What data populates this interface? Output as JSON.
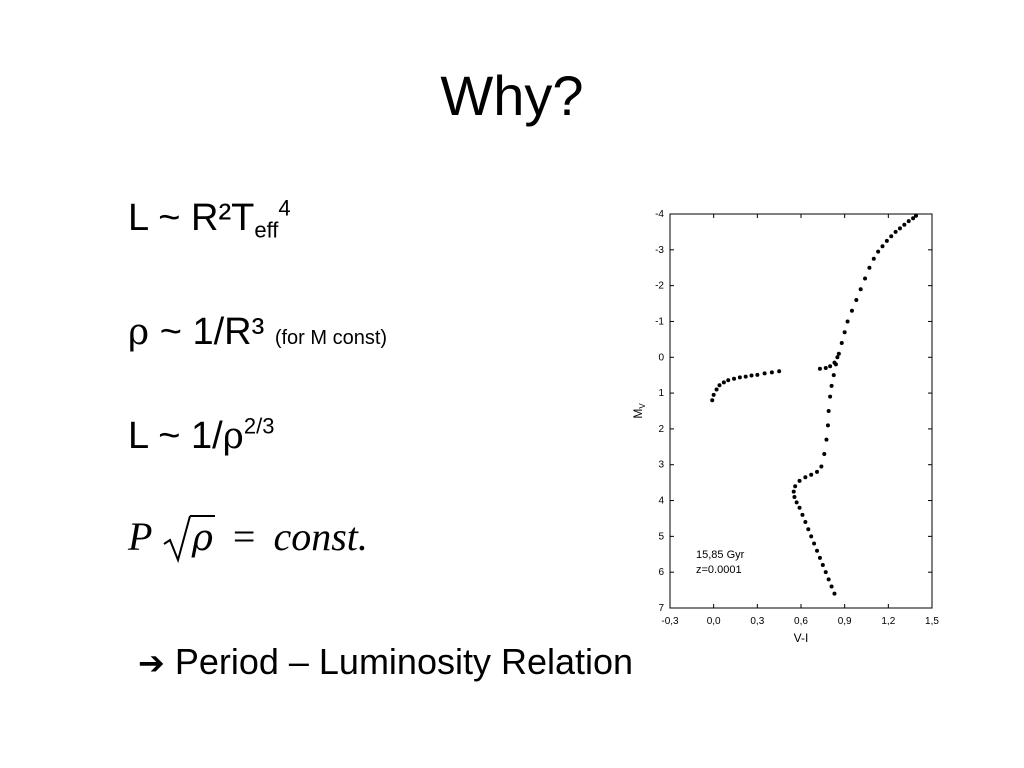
{
  "slide": {
    "title": "Why?",
    "eq1": {
      "lhs": "L ~ R²T",
      "sub": "eff",
      "sup": "4"
    },
    "eq2": {
      "rho": "ρ",
      "rhs": " ~ 1/R³ ",
      "note": "(for M const)"
    },
    "eq3": {
      "lhs": "L ~ 1/",
      "rho": "ρ",
      "sup": "2/3"
    },
    "formula": {
      "p": "P",
      "rho": "ρ",
      "eq": "=",
      "rhs": "const."
    },
    "bullet": {
      "arrow": "➔",
      "text": "Period – Luminosity Relation"
    }
  },
  "chart_data": {
    "type": "scatter",
    "title": "",
    "xlabel": "V-I",
    "ylabel": "M_V",
    "xlim": [
      -0.3,
      1.5
    ],
    "ylim": [
      7,
      -4
    ],
    "xticks": [
      "-0,3",
      "0,0",
      "0,3",
      "0,6",
      "0,9",
      "1,2",
      "1,5"
    ],
    "yticks": [
      "-4",
      "-3",
      "-2",
      "-1",
      "0",
      "1",
      "2",
      "3",
      "4",
      "5",
      "6",
      "7"
    ],
    "annotation": [
      "15,85 Gyr",
      "z=0.0001"
    ],
    "series": [
      {
        "points": [
          [
            0.83,
            6.6
          ],
          [
            0.81,
            6.4
          ],
          [
            0.79,
            6.2
          ],
          [
            0.77,
            6.0
          ],
          [
            0.75,
            5.8
          ],
          [
            0.73,
            5.6
          ],
          [
            0.71,
            5.4
          ],
          [
            0.69,
            5.2
          ],
          [
            0.67,
            5.0
          ],
          [
            0.65,
            4.8
          ],
          [
            0.63,
            4.6
          ],
          [
            0.61,
            4.4
          ],
          [
            0.59,
            4.2
          ],
          [
            0.57,
            4.05
          ],
          [
            0.555,
            3.9
          ],
          [
            0.55,
            3.75
          ],
          [
            0.56,
            3.6
          ],
          [
            0.59,
            3.45
          ],
          [
            0.63,
            3.35
          ],
          [
            0.67,
            3.28
          ],
          [
            0.71,
            3.2
          ],
          [
            0.74,
            3.05
          ],
          [
            0.76,
            2.7
          ],
          [
            0.775,
            2.3
          ],
          [
            0.785,
            1.9
          ],
          [
            0.79,
            1.5
          ],
          [
            0.8,
            1.1
          ],
          [
            0.81,
            0.8
          ],
          [
            0.825,
            0.5
          ],
          [
            0.84,
            0.2
          ],
          [
            0.86,
            -0.1
          ],
          [
            0.88,
            -0.4
          ],
          [
            0.9,
            -0.7
          ],
          [
            0.92,
            -1.0
          ],
          [
            0.95,
            -1.3
          ],
          [
            0.98,
            -1.6
          ],
          [
            1.01,
            -1.9
          ],
          [
            1.04,
            -2.2
          ],
          [
            1.07,
            -2.5
          ],
          [
            1.1,
            -2.75
          ],
          [
            1.13,
            -2.95
          ],
          [
            1.16,
            -3.1
          ],
          [
            1.19,
            -3.25
          ],
          [
            1.22,
            -3.38
          ],
          [
            1.25,
            -3.5
          ],
          [
            1.28,
            -3.6
          ],
          [
            1.31,
            -3.7
          ],
          [
            1.34,
            -3.8
          ],
          [
            1.37,
            -3.88
          ],
          [
            1.39,
            -3.95
          ],
          [
            0.85,
            0.0
          ],
          [
            0.83,
            0.15
          ],
          [
            0.8,
            0.25
          ],
          [
            0.77,
            0.3
          ],
          [
            0.73,
            0.32
          ],
          [
            -0.01,
            1.2
          ],
          [
            0.0,
            1.05
          ],
          [
            0.02,
            0.9
          ],
          [
            0.04,
            0.78
          ],
          [
            0.07,
            0.7
          ],
          [
            0.1,
            0.64
          ],
          [
            0.14,
            0.6
          ],
          [
            0.18,
            0.56
          ],
          [
            0.22,
            0.54
          ],
          [
            0.26,
            0.51
          ],
          [
            0.3,
            0.49
          ],
          [
            0.35,
            0.45
          ],
          [
            0.4,
            0.42
          ],
          [
            0.45,
            0.39
          ]
        ]
      }
    ]
  }
}
